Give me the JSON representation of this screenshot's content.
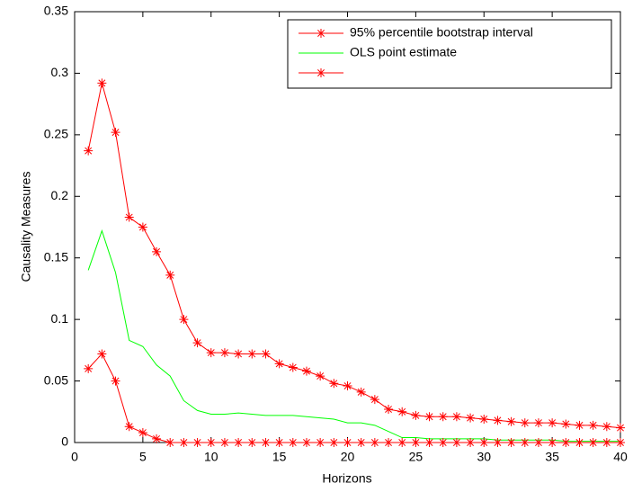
{
  "chart_data": {
    "type": "line",
    "x_label": "Horizons",
    "y_label": "Causality Measures",
    "x": [
      1,
      2,
      3,
      4,
      5,
      6,
      7,
      8,
      9,
      10,
      11,
      12,
      13,
      14,
      15,
      16,
      17,
      18,
      19,
      20,
      21,
      22,
      23,
      24,
      25,
      26,
      27,
      28,
      29,
      30,
      31,
      32,
      33,
      34,
      35,
      36,
      37,
      38,
      39,
      40
    ],
    "series": [
      {
        "name": "95% percentile bootstrap interval",
        "color": "#ff0000",
        "marker": "*",
        "values": [
          0.237,
          0.292,
          0.252,
          0.183,
          0.175,
          0.155,
          0.136,
          0.1,
          0.081,
          0.073,
          0.073,
          0.072,
          0.072,
          0.072,
          0.064,
          0.061,
          0.058,
          0.054,
          0.048,
          0.046,
          0.041,
          0.035,
          0.027,
          0.025,
          0.022,
          0.021,
          0.021,
          0.021,
          0.02,
          0.019,
          0.018,
          0.017,
          0.016,
          0.016,
          0.016,
          0.015,
          0.014,
          0.014,
          0.013,
          0.012
        ]
      },
      {
        "name": "OLS point estimate",
        "color": "#00ff00",
        "values": [
          0.14,
          0.172,
          0.138,
          0.083,
          0.078,
          0.063,
          0.054,
          0.034,
          0.026,
          0.023,
          0.023,
          0.024,
          0.023,
          0.022,
          0.022,
          0.022,
          0.021,
          0.02,
          0.019,
          0.016,
          0.016,
          0.014,
          0.009,
          0.004,
          0.004,
          0.003,
          0.003,
          0.003,
          0.003,
          0.003,
          0.002,
          0.002,
          0.002,
          0.002,
          0.002,
          0.001,
          0.001,
          0.001,
          0.001,
          0.001
        ]
      },
      {
        "color": "#ff0000",
        "marker": "*",
        "values": [
          0.06,
          0.072,
          0.05,
          0.013,
          0.008,
          0.003,
          0,
          0,
          0,
          0,
          0,
          0,
          0,
          0,
          0,
          0,
          0,
          0,
          0,
          0,
          0,
          0,
          0,
          0,
          0,
          0,
          0,
          0,
          0,
          0,
          0,
          0,
          0,
          0,
          0,
          0,
          0,
          0,
          0,
          0
        ]
      }
    ],
    "xlim": [
      0,
      40
    ],
    "xticks": [
      0,
      5,
      10,
      15,
      20,
      25,
      30,
      35,
      40
    ],
    "ylim": [
      0,
      0.35
    ],
    "yticks": [
      0,
      0.05,
      0.1,
      0.15,
      0.2,
      0.25,
      0.3,
      0.35
    ],
    "legend": "upper right"
  }
}
